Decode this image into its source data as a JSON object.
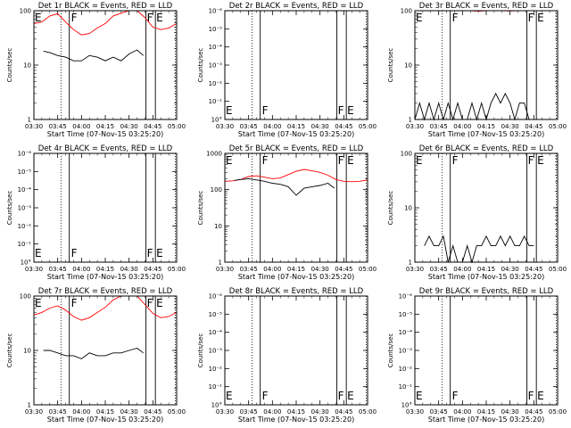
{
  "figure": {
    "x_tick_labels": [
      "03:30",
      "03:45",
      "04:00",
      "04:15",
      "04:30",
      "04:45",
      "05:00"
    ],
    "x_label": "Start Time (07-Nov-15 03:25:20)",
    "y_label": "Counts/sec",
    "marker_labels": [
      "F",
      "F",
      "E"
    ]
  },
  "chart_data": [
    {
      "type": "line",
      "title": "Det 1r BLACK = Events, RED = LLD",
      "x_range": [
        "03:30",
        "05:00"
      ],
      "ylim": [
        1,
        100
      ],
      "y_scale": "log",
      "y_tick_labels": [
        "1",
        "10",
        "100"
      ],
      "series": [
        {
          "color": "#ff0000",
          "x": [
            "03:30",
            "03:35",
            "03:40",
            "03:45",
            "03:50",
            "03:55",
            "04:00",
            "04:05",
            "04:10",
            "04:15",
            "04:20",
            "04:25",
            "04:30",
            "04:35",
            "04:40",
            "04:45",
            "04:50",
            "04:55",
            "05:00"
          ],
          "values": [
            58,
            62,
            80,
            88,
            62,
            45,
            36,
            38,
            48,
            58,
            80,
            90,
            105,
            115,
            75,
            50,
            45,
            48,
            58
          ]
        },
        {
          "color": "#000000",
          "x": [
            "03:36",
            "03:40",
            "03:45",
            "03:50",
            "03:55",
            "04:00",
            "04:05",
            "04:10",
            "04:15",
            "04:20",
            "04:25",
            "04:30",
            "04:35",
            "04:39"
          ],
          "values": [
            18,
            17,
            15,
            14,
            12,
            12,
            15,
            14,
            12,
            14,
            12,
            16,
            19,
            15
          ]
        }
      ]
    },
    {
      "type": "line",
      "title": "Det 2r BLACK = Events, RED = LLD",
      "x_range": [
        "03:30",
        "05:00"
      ],
      "y_scale": "log",
      "y_tick_labels": [
        "10°",
        "10⁻¹",
        "10⁻²",
        "10⁻³",
        "10⁻⁴",
        "10⁻⁵",
        "10⁻⁶"
      ],
      "series": []
    },
    {
      "type": "line",
      "title": "Det 3r BLACK = Events, RED = LLD",
      "x_range": [
        "03:30",
        "05:00"
      ],
      "ylim": [
        1,
        100
      ],
      "y_scale": "log",
      "y_tick_labels": [
        "1",
        "10",
        "100"
      ],
      "series": [
        {
          "color": "#ff0000",
          "x": [
            "04:00",
            "04:05",
            "04:10",
            "04:15",
            "04:20",
            "04:25",
            "04:30",
            "04:35",
            "04:40",
            "04:45",
            "04:50",
            "04:55",
            "05:00"
          ],
          "values": [
            100,
            102,
            98,
            100,
            103,
            101,
            99,
            100,
            102,
            100,
            101,
            100,
            100
          ]
        },
        {
          "color": "#000000",
          "x": [
            "03:30",
            "03:33",
            "03:36",
            "03:39",
            "03:42",
            "03:45",
            "03:48",
            "03:51",
            "03:54",
            "03:57",
            "04:00",
            "04:03",
            "04:06",
            "04:09",
            "04:12",
            "04:15",
            "04:18",
            "04:21",
            "04:24",
            "04:27",
            "04:30",
            "04:33",
            "04:36",
            "04:39",
            "04:42"
          ],
          "values": [
            1,
            2,
            1,
            2,
            1,
            2,
            1,
            2,
            1,
            2,
            1,
            1,
            2,
            1,
            2,
            1,
            2,
            3,
            2,
            3,
            2,
            1,
            2,
            2,
            1
          ]
        }
      ]
    },
    {
      "type": "line",
      "title": "Det 4r BLACK = Events, RED = LLD",
      "x_range": [
        "03:30",
        "05:00"
      ],
      "y_scale": "log",
      "y_tick_labels": [
        "10°",
        "10⁻¹",
        "10⁻²",
        "10⁻³",
        "10⁻⁴",
        "10⁻⁵",
        "10⁻⁶"
      ],
      "series": []
    },
    {
      "type": "line",
      "title": "Det 5r BLACK = Events, RED = LLD",
      "x_range": [
        "03:30",
        "05:00"
      ],
      "ylim": [
        1,
        1000
      ],
      "y_scale": "log",
      "y_tick_labels": [
        "1",
        "10",
        "100",
        "1000"
      ],
      "series": [
        {
          "color": "#ff0000",
          "x": [
            "03:30",
            "03:35",
            "03:40",
            "03:45",
            "03:50",
            "03:55",
            "04:00",
            "04:05",
            "04:10",
            "04:15",
            "04:20",
            "04:25",
            "04:30",
            "04:35",
            "04:40",
            "04:45",
            "04:50",
            "04:55",
            "05:00"
          ],
          "values": [
            170,
            175,
            190,
            230,
            240,
            220,
            200,
            210,
            260,
            320,
            360,
            330,
            300,
            250,
            190,
            170,
            165,
            170,
            185
          ]
        },
        {
          "color": "#000000",
          "x": [
            "03:36",
            "03:40",
            "03:45",
            "03:50",
            "03:55",
            "04:00",
            "04:05",
            "04:10",
            "04:15",
            "04:20",
            "04:25",
            "04:30",
            "04:35",
            "04:39"
          ],
          "values": [
            180,
            190,
            200,
            185,
            170,
            150,
            140,
            120,
            70,
            110,
            120,
            130,
            150,
            110
          ]
        }
      ]
    },
    {
      "type": "line",
      "title": "Det 6r BLACK = Events, RED = LLD",
      "x_range": [
        "03:30",
        "05:00"
      ],
      "ylim": [
        1,
        100
      ],
      "y_scale": "log",
      "y_tick_labels": [
        "1",
        "10",
        "100"
      ],
      "series": [
        {
          "color": "#000000",
          "x": [
            "03:36",
            "03:39",
            "03:42",
            "03:45",
            "03:48",
            "03:51",
            "03:54",
            "03:57",
            "04:00",
            "04:03",
            "04:06",
            "04:09",
            "04:12",
            "04:15",
            "04:18",
            "04:21",
            "04:24",
            "04:27",
            "04:30",
            "04:33",
            "04:36",
            "04:39",
            "04:42",
            "04:45"
          ],
          "values": [
            2,
            3,
            2,
            2,
            3,
            1,
            2,
            1,
            1,
            2,
            1,
            2,
            2,
            3,
            2,
            2,
            3,
            2,
            3,
            2,
            2,
            3,
            2,
            2
          ]
        }
      ]
    },
    {
      "type": "line",
      "title": "Det 7r BLACK = Events, RED = LLD",
      "x_range": [
        "03:30",
        "05:00"
      ],
      "ylim": [
        1,
        100
      ],
      "y_scale": "log",
      "y_tick_labels": [
        "1",
        "10",
        "100"
      ],
      "series": [
        {
          "color": "#ff0000",
          "x": [
            "03:30",
            "03:35",
            "03:40",
            "03:45",
            "03:50",
            "03:55",
            "04:00",
            "04:05",
            "04:10",
            "04:15",
            "04:20",
            "04:25",
            "04:30",
            "04:35",
            "04:40",
            "04:45",
            "04:50",
            "04:55",
            "05:00"
          ],
          "values": [
            45,
            50,
            60,
            66,
            55,
            42,
            36,
            40,
            50,
            62,
            85,
            100,
            120,
            110,
            70,
            48,
            40,
            42,
            50
          ]
        },
        {
          "color": "#000000",
          "x": [
            "03:36",
            "03:40",
            "03:45",
            "03:50",
            "03:55",
            "04:00",
            "04:05",
            "04:10",
            "04:15",
            "04:20",
            "04:25",
            "04:30",
            "04:35",
            "04:39"
          ],
          "values": [
            10,
            10,
            9,
            8,
            8,
            7,
            9,
            8,
            8,
            9,
            9,
            10,
            11,
            9
          ]
        }
      ]
    },
    {
      "type": "line",
      "title": "Det 8r BLACK = Events, RED = LLD",
      "x_range": [
        "03:30",
        "05:00"
      ],
      "y_scale": "log",
      "y_tick_labels": [
        "10°",
        "10⁻¹",
        "10⁻²",
        "10⁻³",
        "10⁻⁴",
        "10⁻⁵",
        "10⁻⁶"
      ],
      "series": []
    },
    {
      "type": "line",
      "title": "Det 9r BLACK = Events, RED = LLD",
      "x_range": [
        "03:30",
        "05:00"
      ],
      "y_scale": "log",
      "y_tick_labels": [
        "10°",
        "10⁻¹",
        "10⁻²",
        "10⁻³",
        "10⁻⁴",
        "10⁻⁵",
        "10⁻⁶"
      ],
      "series": []
    }
  ]
}
